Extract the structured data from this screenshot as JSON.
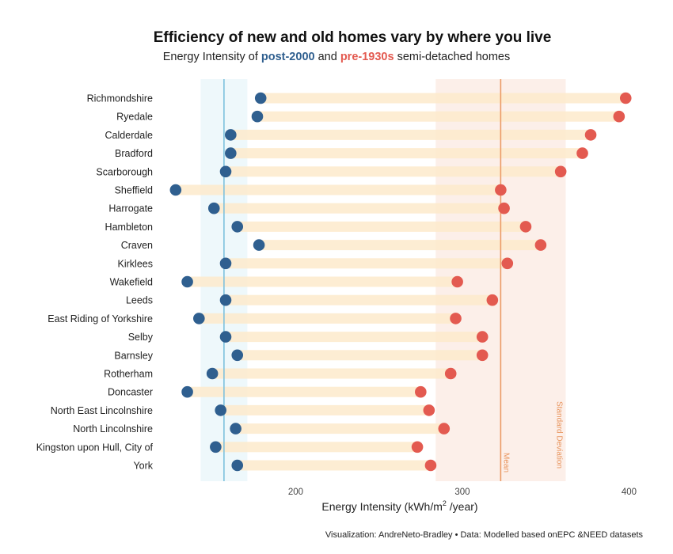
{
  "chart_data": {
    "type": "dumbbell",
    "title": "Efficiency of new and old homes vary by where you live",
    "subtitle": {
      "prefix": "Energy Intensity of ",
      "series1": "post-2000",
      "middle": " and ",
      "series2": "pre-1930s",
      "suffix": " semi-detached homes"
    },
    "xlabel_prefix": "Energy Intensity (kWh/m",
    "xlabel_sup": "2",
    "xlabel_suffix": " /year)",
    "xlim": [
      120,
      405
    ],
    "xticks": [
      200,
      300,
      400
    ],
    "categories": [
      "Richmondshire",
      "Ryedale",
      "Calderdale",
      "Bradford",
      "Scarborough",
      "Sheffield",
      "Harrogate",
      "Hambleton",
      "Craven",
      "Kirklees",
      "Wakefield",
      "Leeds",
      "East Riding of Yorkshire",
      "Selby",
      "Barnsley",
      "Rotherham",
      "Doncaster",
      "North East Lincolnshire",
      "North Lincolnshire",
      "Kingston upon Hull, City of",
      "York"
    ],
    "series": [
      {
        "name": "post-2000",
        "color": "#2f5f8f",
        "values": [
          179,
          177,
          161,
          161,
          158,
          128,
          151,
          165,
          178,
          158,
          135,
          158,
          142,
          158,
          165,
          150,
          135,
          155,
          164,
          152,
          165
        ]
      },
      {
        "name": "pre-1930s",
        "color": "#e35a50",
        "values": [
          398,
          394,
          377,
          372,
          359,
          323,
          325,
          338,
          347,
          327,
          297,
          318,
          296,
          312,
          312,
          293,
          275,
          280,
          289,
          273,
          281
        ]
      }
    ],
    "reference_lines": {
      "post_mean": 157,
      "post_sd_band": [
        143,
        171
      ],
      "pre_mean": 323,
      "pre_sd_band": [
        284,
        362
      ],
      "mean_label": "Mean",
      "sd_label": "Standard Deviation"
    },
    "colors": {
      "post": "#2f5f8f",
      "pre": "#e35a50",
      "bar": "#fdeacb",
      "post_band": "#eef8fb",
      "post_line": "#7ec1dd",
      "pre_band": "#fcefe9",
      "pre_line": "#eb9a66"
    },
    "caption": "Visualization: AndreNeto-Bradley • Data: Modelled based onEPC &NEED datasets",
    "grid": false,
    "legend": "none"
  }
}
